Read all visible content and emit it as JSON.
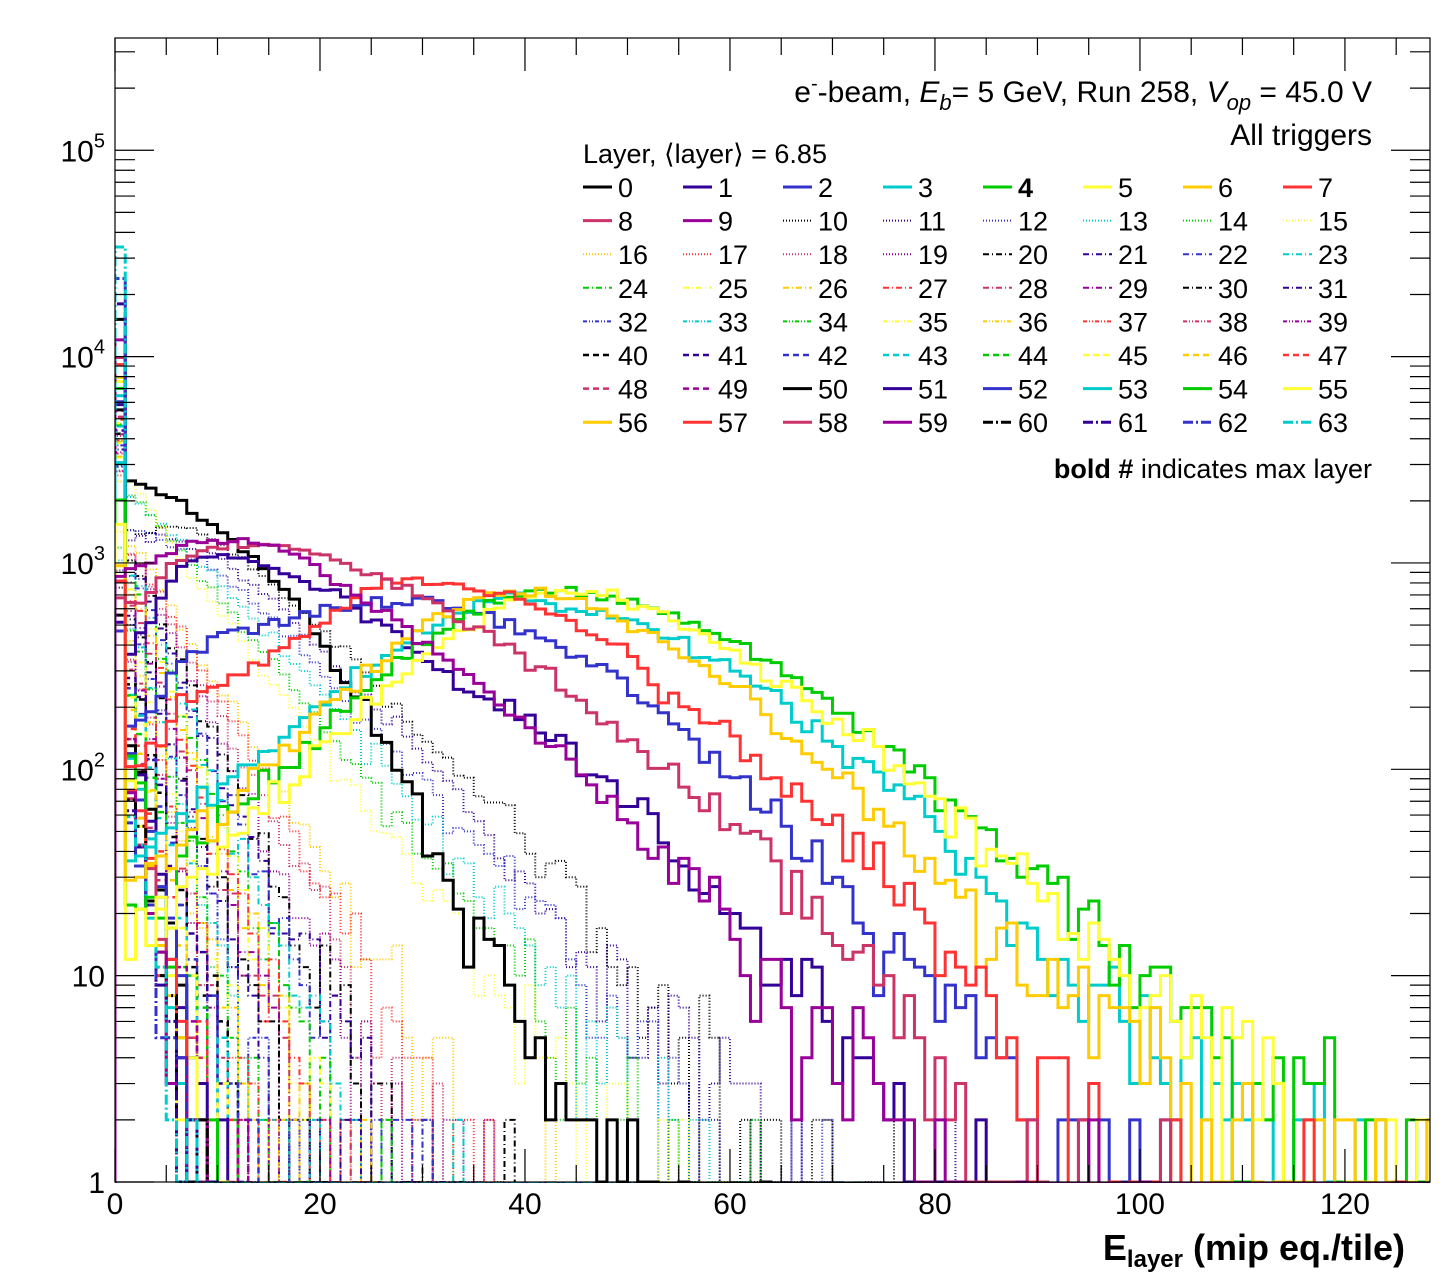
{
  "annotation": {
    "line1": {
      "e": "e",
      "minus": "-",
      "beam": "-beam, ",
      "E": "E",
      "b": "b",
      "energy": "= 5 GeV, Run 258, ",
      "V": "V",
      "op": "op",
      "voltage": " = 45.0 V"
    },
    "line2": "All triggers",
    "legend_title": "Layer, ⟨layer⟩ = 6.85",
    "footnote_bold": "bold #",
    "footnote_rest": " indicates max layer"
  },
  "chart_data": {
    "type": "line",
    "style": "step-histogram",
    "title": "e- beam, Eb = 5 GeV, Run 258, Vop = 45.0 V, All triggers",
    "xlabel_main": "E",
    "xlabel_sub": "layer",
    "xlabel_rest": " (mip eq./tile)",
    "ylabel": "",
    "xlim": [
      0,
      128.3
    ],
    "ylim": [
      1,
      350000
    ],
    "yscale": "log",
    "x_ticks": [
      "0",
      "20",
      "40",
      "60",
      "80",
      "100",
      "120"
    ],
    "y_ticks": [
      {
        "base": "1",
        "exp": ""
      },
      {
        "base": "10",
        "exp": ""
      },
      {
        "base": "10",
        "exp": "2"
      },
      {
        "base": "10",
        "exp": "3"
      },
      {
        "base": "10",
        "exp": "4"
      },
      {
        "base": "10",
        "exp": "5"
      }
    ],
    "legend_placement": "top-right",
    "max_layer": "4",
    "mean_layer": 6.85,
    "anchor_note": "values[0] = first bin (x=0-1); values[i>=1] at x = 4i-2",
    "colors": [
      "#000000",
      "#330099",
      "#3333cc",
      "#00cccc",
      "#00cc00",
      "#ffff33",
      "#ffcc00",
      "#ff3333",
      "#cc3366",
      "#990099"
    ],
    "series": [
      {
        "name": "0",
        "values": [
          600,
          2500,
          2000,
          1500,
          1000,
          600,
          300,
          150,
          60,
          20,
          8,
          4,
          2,
          1,
          0.5
        ]
      },
      {
        "name": "1",
        "values": [
          500,
          400,
          900,
          1100,
          1000,
          850,
          700,
          500,
          350,
          250,
          200,
          150,
          100,
          70,
          45,
          28,
          18,
          11,
          6,
          3,
          1.5,
          0.6
        ]
      },
      {
        "name": "2",
        "values": [
          450,
          150,
          300,
          450,
          500,
          550,
          620,
          650,
          650,
          620,
          520,
          420,
          330,
          250,
          170,
          110,
          80,
          50,
          30,
          18,
          10,
          6,
          3.5,
          2,
          1.2,
          0.6
        ]
      },
      {
        "name": "3",
        "values": [
          3000,
          30,
          60,
          80,
          110,
          170,
          250,
          350,
          450,
          600,
          680,
          650,
          600,
          520,
          430,
          350,
          270,
          200,
          140,
          100,
          65,
          40,
          25,
          16,
          10,
          6,
          4,
          2.5,
          1.6,
          1.2,
          1.5,
          1,
          0.7
        ]
      },
      {
        "name": "4",
        "values": [
          2000,
          20,
          30,
          50,
          80,
          120,
          200,
          280,
          400,
          550,
          700,
          730,
          700,
          650,
          570,
          470,
          380,
          290,
          210,
          150,
          100,
          65,
          45,
          30,
          20,
          13,
          9,
          6,
          4,
          3,
          2.5,
          1.8,
          1.5
        ]
      },
      {
        "name": "5",
        "values": [
          1500,
          15,
          20,
          40,
          60,
          100,
          150,
          230,
          350,
          480,
          620,
          720,
          750,
          650,
          540,
          430,
          330,
          250,
          180,
          130,
          90,
          60,
          40,
          25,
          17,
          11,
          7,
          5,
          3.5,
          2.5,
          2,
          1.3
        ]
      },
      {
        "name": "6",
        "values": [
          1000,
          25,
          40,
          60,
          90,
          150,
          230,
          350,
          500,
          650,
          720,
          700,
          620,
          520,
          400,
          300,
          220,
          150,
          100,
          65,
          40,
          25,
          15,
          10,
          7,
          5,
          3.5,
          2.5,
          1.8,
          1.2,
          0.8
        ]
      },
      {
        "name": "7",
        "values": [
          800,
          100,
          200,
          250,
          320,
          450,
          600,
          800,
          850,
          800,
          700,
          600,
          480,
          350,
          230,
          170,
          120,
          80,
          55,
          35,
          22,
          13,
          7,
          4,
          2.5,
          1.5,
          1,
          0.6
        ]
      },
      {
        "name": "8",
        "values": [
          700,
          600,
          1000,
          1200,
          1250,
          1150,
          1000,
          850,
          700,
          520,
          400,
          300,
          200,
          140,
          100,
          70,
          45,
          30,
          15,
          8,
          4,
          2,
          1,
          0.5
        ]
      },
      {
        "name": "9",
        "values": [
          900,
          900,
          1200,
          1300,
          1250,
          1100,
          800,
          600,
          420,
          300,
          200,
          140,
          90,
          60,
          35,
          22,
          13,
          8,
          5,
          3,
          1.5,
          0.8
        ]
      },
      {
        "name": "10",
        "values": [
          800,
          1400,
          1500,
          1300,
          900,
          600,
          380,
          240,
          150,
          90,
          55,
          33,
          20,
          12,
          7,
          4,
          2.5,
          1.5,
          0.8
        ]
      },
      {
        "name": "11",
        "values": [
          800,
          1300,
          1300,
          1100,
          750,
          480,
          300,
          190,
          115,
          70,
          42,
          25,
          15,
          9,
          5,
          3,
          1.8,
          1,
          0.6
        ]
      },
      {
        "name": "12",
        "values": [
          900,
          1500,
          1200,
          900,
          600,
          380,
          230,
          140,
          85,
          50,
          30,
          18,
          10,
          6,
          3.5,
          2,
          1.2,
          0.7
        ]
      },
      {
        "name": "13",
        "values": [
          1000,
          2000,
          1300,
          850,
          520,
          310,
          180,
          105,
          60,
          35,
          20,
          11,
          6,
          3.5,
          2,
          1.2,
          0.7
        ]
      },
      {
        "name": "14",
        "values": [
          1200,
          2200,
          1200,
          700,
          400,
          230,
          130,
          70,
          40,
          22,
          12,
          7,
          4,
          2.2,
          1.3,
          0.8
        ]
      },
      {
        "name": "15",
        "values": [
          1400,
          2400,
          1100,
          600,
          330,
          180,
          95,
          50,
          27,
          15,
          8,
          4.5,
          2.5,
          1.4,
          0.8
        ]
      },
      {
        "name": "16",
        "values": [
          2500,
          1200,
          550,
          250,
          115,
          52,
          24,
          11,
          5,
          2.3,
          1
        ]
      },
      {
        "name": "17",
        "values": [
          2600,
          1150,
          500,
          220,
          98,
          43,
          19,
          8.5,
          3.8,
          1.7,
          0.8
        ]
      },
      {
        "name": "18",
        "values": [
          2700,
          1100,
          450,
          185,
          76,
          31,
          13,
          5.3,
          2.2,
          0.9
        ]
      },
      {
        "name": "19",
        "values": [
          2800,
          1050,
          400,
          150,
          57,
          22,
          8.3,
          3.1,
          1.2,
          0.5
        ]
      },
      {
        "name": "20",
        "values": [
          2900,
          1000,
          360,
          130,
          47,
          17,
          6,
          2.2,
          0.8
        ]
      },
      {
        "name": "21",
        "values": [
          3000,
          950,
          320,
          110,
          37,
          13,
          4.3,
          1.5,
          0.5
        ]
      },
      {
        "name": "22",
        "values": [
          3000,
          900,
          290,
          95,
          31,
          10,
          3.3,
          1.1,
          0.4
        ]
      },
      {
        "name": "23",
        "values": [
          3100,
          850,
          260,
          80,
          25,
          7.7,
          2.4,
          0.7
        ]
      },
      {
        "name": "24",
        "values": [
          3200,
          800,
          230,
          67,
          20,
          6,
          1.7,
          0.5
        ]
      },
      {
        "name": "25",
        "values": [
          3300,
          760,
          210,
          58,
          16,
          4.5,
          1.3
        ]
      },
      {
        "name": "26",
        "values": [
          3300,
          720,
          190,
          50,
          13,
          3.5,
          0.9
        ]
      },
      {
        "name": "27",
        "values": [
          3400,
          680,
          170,
          43,
          11,
          2.8,
          0.7
        ]
      },
      {
        "name": "28",
        "values": [
          3400,
          640,
          150,
          37,
          9,
          2.2,
          0.6
        ]
      },
      {
        "name": "29",
        "values": [
          3500,
          600,
          135,
          31,
          7,
          1.6
        ]
      },
      {
        "name": "30",
        "values": [
          3500,
          560,
          120,
          26,
          5.7,
          1.2
        ]
      },
      {
        "name": "31",
        "values": [
          3600,
          530,
          105,
          22,
          4.5,
          1
        ]
      },
      {
        "name": "32",
        "values": [
          3700,
          500,
          95,
          18,
          3.5,
          0.7
        ]
      },
      {
        "name": "33",
        "values": [
          3800,
          470,
          85,
          15,
          2.8
        ]
      },
      {
        "name": "34",
        "values": [
          3800,
          440,
          75,
          13,
          2.2
        ]
      },
      {
        "name": "35",
        "values": [
          3900,
          410,
          66,
          11,
          1.7
        ]
      },
      {
        "name": "36",
        "values": [
          4000,
          380,
          58,
          9,
          1.4
        ]
      },
      {
        "name": "37",
        "values": [
          4000,
          350,
          50,
          7.5,
          1.1
        ]
      },
      {
        "name": "38",
        "values": [
          4100,
          330,
          45,
          6,
          0.9
        ]
      },
      {
        "name": "39",
        "values": [
          4200,
          310,
          40,
          5,
          0.7
        ]
      },
      {
        "name": "40",
        "values": [
          4300,
          290,
          35,
          4.2,
          0.5
        ]
      },
      {
        "name": "41",
        "values": [
          4400,
          270,
          31,
          3.5
        ]
      },
      {
        "name": "42",
        "values": [
          4500,
          250,
          28,
          3
        ]
      },
      {
        "name": "43",
        "values": [
          4600,
          230,
          25,
          2.6
        ]
      },
      {
        "name": "44",
        "values": [
          4700,
          215,
          22,
          2.2
        ]
      },
      {
        "name": "45",
        "values": [
          4800,
          200,
          20,
          1.9
        ]
      },
      {
        "name": "46",
        "values": [
          4900,
          185,
          18,
          1.6
        ]
      },
      {
        "name": "47",
        "values": [
          5000,
          170,
          16,
          1.4
        ]
      },
      {
        "name": "48",
        "values": [
          5200,
          160,
          14,
          1.2
        ]
      },
      {
        "name": "49",
        "values": [
          5400,
          150,
          12,
          1
        ]
      },
      {
        "name": "50",
        "values": [
          5600,
          140,
          11,
          0.9
        ]
      },
      {
        "name": "51",
        "values": [
          5800,
          130,
          10
        ]
      },
      {
        "name": "52",
        "values": [
          6000,
          120,
          9
        ]
      },
      {
        "name": "53",
        "values": [
          6500,
          110,
          8
        ]
      },
      {
        "name": "54",
        "values": [
          7000,
          100,
          7
        ]
      },
      {
        "name": "55",
        "values": [
          7500,
          95,
          6
        ]
      },
      {
        "name": "56",
        "values": [
          8000,
          90,
          5.5
        ]
      },
      {
        "name": "57",
        "values": [
          9000,
          85,
          5
        ]
      },
      {
        "name": "58",
        "values": [
          10000,
          80,
          4.5
        ]
      },
      {
        "name": "59",
        "values": [
          12000,
          75,
          4
        ]
      },
      {
        "name": "60",
        "values": [
          15000,
          70,
          3.5
        ]
      },
      {
        "name": "61",
        "values": [
          18000,
          65,
          3
        ]
      },
      {
        "name": "62",
        "values": [
          24000,
          60,
          2.5
        ]
      },
      {
        "name": "63",
        "values": [
          34000,
          55,
          2
        ]
      }
    ]
  }
}
